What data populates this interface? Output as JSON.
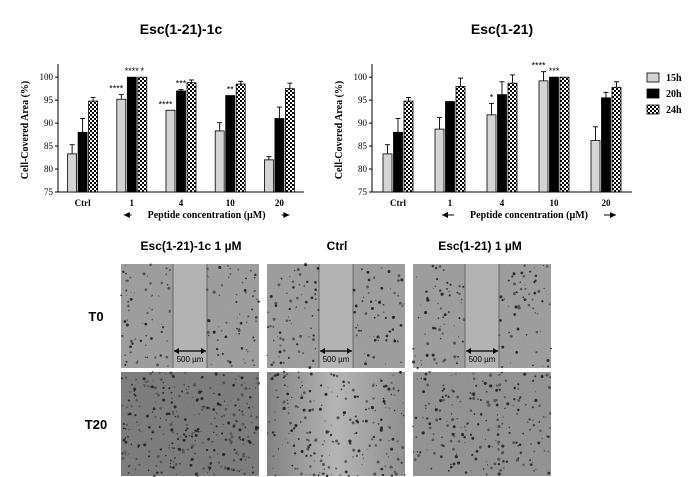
{
  "chart_data": [
    {
      "type": "bar",
      "title": "Esc(1-21)-1c",
      "ylabel": "Cell-Covered Area (%)",
      "xlabel": "Peptide concentration (µM)",
      "ylim": [
        75,
        102
      ],
      "yticks": [
        "75",
        "80",
        "85",
        "90",
        "95",
        "100"
      ],
      "categories": [
        "Ctrl",
        "1",
        "4",
        "10",
        "20"
      ],
      "series": [
        {
          "name": "15h",
          "values": [
            83.3,
            95.2,
            92.8,
            88.3,
            82.0
          ],
          "errors": [
            2.0,
            1.0,
            0.0,
            1.8,
            0.7
          ]
        },
        {
          "name": "20h",
          "values": [
            88.0,
            100.0,
            97.0,
            96.0,
            91.0
          ],
          "errors": [
            3.0,
            0.0,
            0.3,
            0.0,
            2.5
          ]
        },
        {
          "name": "24h",
          "values": [
            94.8,
            100.0,
            98.8,
            98.5,
            97.5
          ],
          "errors": [
            0.8,
            0.0,
            0.6,
            0.6,
            1.2
          ]
        }
      ],
      "annotations": [
        {
          "category": 1,
          "series": 0,
          "text": "****"
        },
        {
          "category": 1,
          "series": 1,
          "text": "****"
        },
        {
          "category": 1,
          "series": 2,
          "text": "*"
        },
        {
          "category": 2,
          "series": 0,
          "text": "****"
        },
        {
          "category": 2,
          "series": 1,
          "text": "***"
        },
        {
          "category": 3,
          "series": 1,
          "text": "**"
        }
      ]
    },
    {
      "type": "bar",
      "title": "Esc(1-21)",
      "ylabel": "Cell-Covered Area (%)",
      "xlabel": "Peptide concentration (µM)",
      "ylim": [
        75,
        102
      ],
      "yticks": [
        "75",
        "80",
        "85",
        "90",
        "95",
        "100"
      ],
      "categories": [
        "Ctrl",
        "1",
        "4",
        "10",
        "20"
      ],
      "series": [
        {
          "name": "15h",
          "values": [
            83.3,
            88.7,
            91.8,
            99.2,
            86.2
          ],
          "errors": [
            2.0,
            2.5,
            2.5,
            2.0,
            3.0
          ]
        },
        {
          "name": "20h",
          "values": [
            88.0,
            94.7,
            96.2,
            100.0,
            95.5
          ],
          "errors": [
            3.0,
            0.0,
            2.8,
            0.0,
            1.2
          ]
        },
        {
          "name": "24h",
          "values": [
            94.8,
            98.0,
            98.7,
            100.0,
            97.8
          ],
          "errors": [
            0.8,
            1.8,
            1.8,
            0.0,
            1.2
          ]
        }
      ],
      "annotations": [
        {
          "category": 2,
          "series": 0,
          "text": "*"
        },
        {
          "category": 3,
          "series": 0,
          "text": "****"
        },
        {
          "category": 3,
          "series": 1,
          "text": "***"
        }
      ],
      "legend": "right"
    }
  ],
  "microscopy": {
    "columns": [
      "Esc(1-21)-1c 1 µM",
      "Ctrl",
      "Esc(1-21) 1 µM"
    ],
    "rows": [
      "T0",
      "T20"
    ],
    "scale_bar": "500 µm"
  },
  "colors": {
    "15h": "#d4d4d4",
    "20h": "#000000",
    "24h": "checkered"
  }
}
